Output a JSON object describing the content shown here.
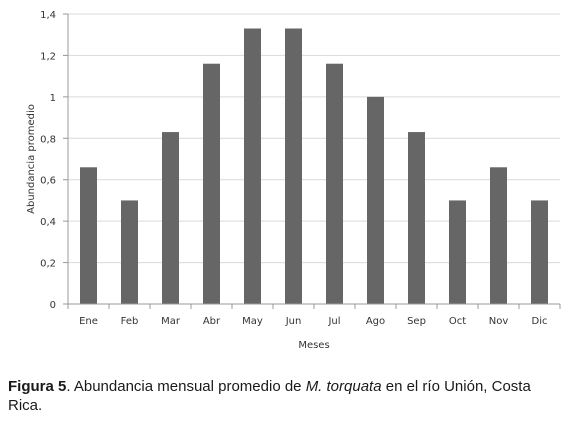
{
  "chart_data": {
    "type": "bar",
    "categories": [
      "Ene",
      "Feb",
      "Mar",
      "Abr",
      "May",
      "Jun",
      "Jul",
      "Ago",
      "Sep",
      "Oct",
      "Nov",
      "Dic"
    ],
    "values": [
      0.66,
      0.5,
      0.83,
      1.16,
      1.33,
      1.33,
      1.16,
      1.0,
      0.83,
      0.5,
      0.66,
      0.5
    ],
    "xlabel": "Meses",
    "ylabel": "Abundancia promedio",
    "ylim": [
      0,
      1.4
    ],
    "yticks": [
      "0",
      "0,2",
      "0,4",
      "0,6",
      "0,8",
      "1",
      "1,2",
      "1,4"
    ],
    "grid": true,
    "bar_color": "#666666",
    "grid_color": "#d9d9d9"
  },
  "caption": {
    "label": "Figura 5",
    "text_before": ". Abundancia mensual promedio de ",
    "species": "M. torquata",
    "text_after": " en el río Unión, Costa Rica."
  }
}
